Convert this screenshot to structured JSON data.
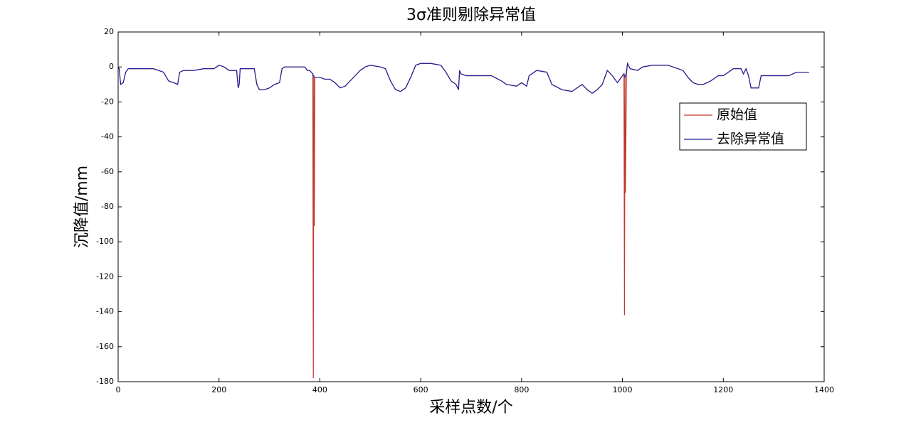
{
  "chart_data": {
    "type": "line",
    "title": "3σ准则剔除异常值",
    "xlabel": "采样点数/个",
    "ylabel": "沉降值/mm",
    "x": [
      0,
      2,
      5,
      10,
      15,
      20,
      30,
      50,
      70,
      90,
      100,
      110,
      118,
      122,
      130,
      150,
      170,
      190,
      200,
      210,
      220,
      235,
      238,
      240,
      242,
      250,
      270,
      275,
      280,
      290,
      300,
      310,
      320,
      325,
      330,
      350,
      370,
      375,
      380,
      386,
      387,
      388,
      389,
      390,
      400,
      410,
      420,
      430,
      440,
      450,
      460,
      470,
      480,
      490,
      500,
      520,
      530,
      540,
      550,
      560,
      570,
      580,
      590,
      600,
      620,
      640,
      650,
      660,
      670,
      675,
      677,
      680,
      690,
      720,
      740,
      760,
      770,
      790,
      800,
      810,
      815,
      830,
      850,
      860,
      880,
      900,
      920,
      930,
      940,
      950,
      960,
      970,
      980,
      990,
      1000,
      1003,
      1004,
      1005,
      1006,
      1008,
      1010,
      1015,
      1030,
      1040,
      1060,
      1090,
      1100,
      1120,
      1130,
      1140,
      1150,
      1160,
      1175,
      1190,
      1200,
      1210,
      1220,
      1235,
      1240,
      1245,
      1250,
      1255,
      1270,
      1275,
      1290,
      1330,
      1345,
      1370
    ],
    "series": [
      {
        "name": "原始值",
        "color": "#c0392b",
        "values": [
          0,
          -1,
          -10,
          -9,
          -3,
          -1,
          -1,
          -1,
          -1,
          -3,
          -8,
          -9,
          -10,
          -3,
          -2,
          -2,
          -1,
          -1,
          1,
          0,
          -2,
          -2,
          -12,
          -10,
          -1,
          -1,
          -1,
          -10,
          -13,
          -13,
          -12,
          -10,
          -9,
          -1,
          0,
          0,
          0,
          -2,
          -2,
          -4,
          -178,
          -5,
          -91,
          -6,
          -6,
          -7,
          -7,
          -9,
          -12,
          -11,
          -8,
          -5,
          -2,
          0,
          1,
          0,
          -1,
          -8,
          -13,
          -14,
          -12,
          -6,
          1,
          2,
          2,
          1,
          -3,
          -8,
          -10,
          -13,
          -2,
          -4,
          -5,
          -5,
          -5,
          -8,
          -10,
          -11,
          -9,
          -11,
          -5,
          -2,
          -3,
          -10,
          -13,
          -14,
          -10,
          -13,
          -15,
          -13,
          -10,
          -2,
          -5,
          -9,
          -5,
          -4,
          -142,
          -6,
          -72,
          -3,
          2,
          -1,
          -2,
          0,
          1,
          1,
          0,
          -2,
          -6,
          -9,
          -10,
          -10,
          -8,
          -5,
          -5,
          -3,
          -1,
          -1,
          -4,
          -1,
          -5,
          -12,
          -12,
          -5,
          -5,
          -5,
          -3,
          -3
        ]
      },
      {
        "name": "去除异常值",
        "color": "#1f1f9e",
        "values": [
          0,
          -1,
          -10,
          -9,
          -3,
          -1,
          -1,
          -1,
          -1,
          -3,
          -8,
          -9,
          -10,
          -3,
          -2,
          -2,
          -1,
          -1,
          1,
          0,
          -2,
          -2,
          -12,
          -10,
          -1,
          -1,
          -1,
          -10,
          -13,
          -13,
          -12,
          -10,
          -9,
          -1,
          0,
          0,
          0,
          -2,
          -2,
          -4,
          -5,
          -5,
          -6,
          -6,
          -6,
          -7,
          -7,
          -9,
          -12,
          -11,
          -8,
          -5,
          -2,
          0,
          1,
          0,
          -1,
          -8,
          -13,
          -14,
          -12,
          -6,
          1,
          2,
          2,
          1,
          -3,
          -8,
          -10,
          -13,
          -2,
          -4,
          -5,
          -5,
          -5,
          -8,
          -10,
          -11,
          -9,
          -11,
          -5,
          -2,
          -3,
          -10,
          -13,
          -14,
          -10,
          -13,
          -15,
          -13,
          -10,
          -2,
          -5,
          -9,
          -5,
          -4,
          -5,
          -6,
          -5,
          -3,
          2,
          -1,
          -2,
          0,
          1,
          1,
          0,
          -2,
          -6,
          -9,
          -10,
          -10,
          -8,
          -5,
          -5,
          -3,
          -1,
          -1,
          -4,
          -1,
          -5,
          -12,
          -12,
          -5,
          -5,
          -5,
          -3,
          -3
        ]
      }
    ],
    "xlim": [
      0,
      1400
    ],
    "xticks": [
      0,
      200,
      400,
      600,
      800,
      1000,
      1200,
      1400
    ],
    "ylim": [
      -180,
      20
    ],
    "yticks": [
      20,
      0,
      -20,
      -40,
      -60,
      -80,
      -100,
      -120,
      -140,
      -160,
      -180
    ],
    "legend": "upper right"
  }
}
